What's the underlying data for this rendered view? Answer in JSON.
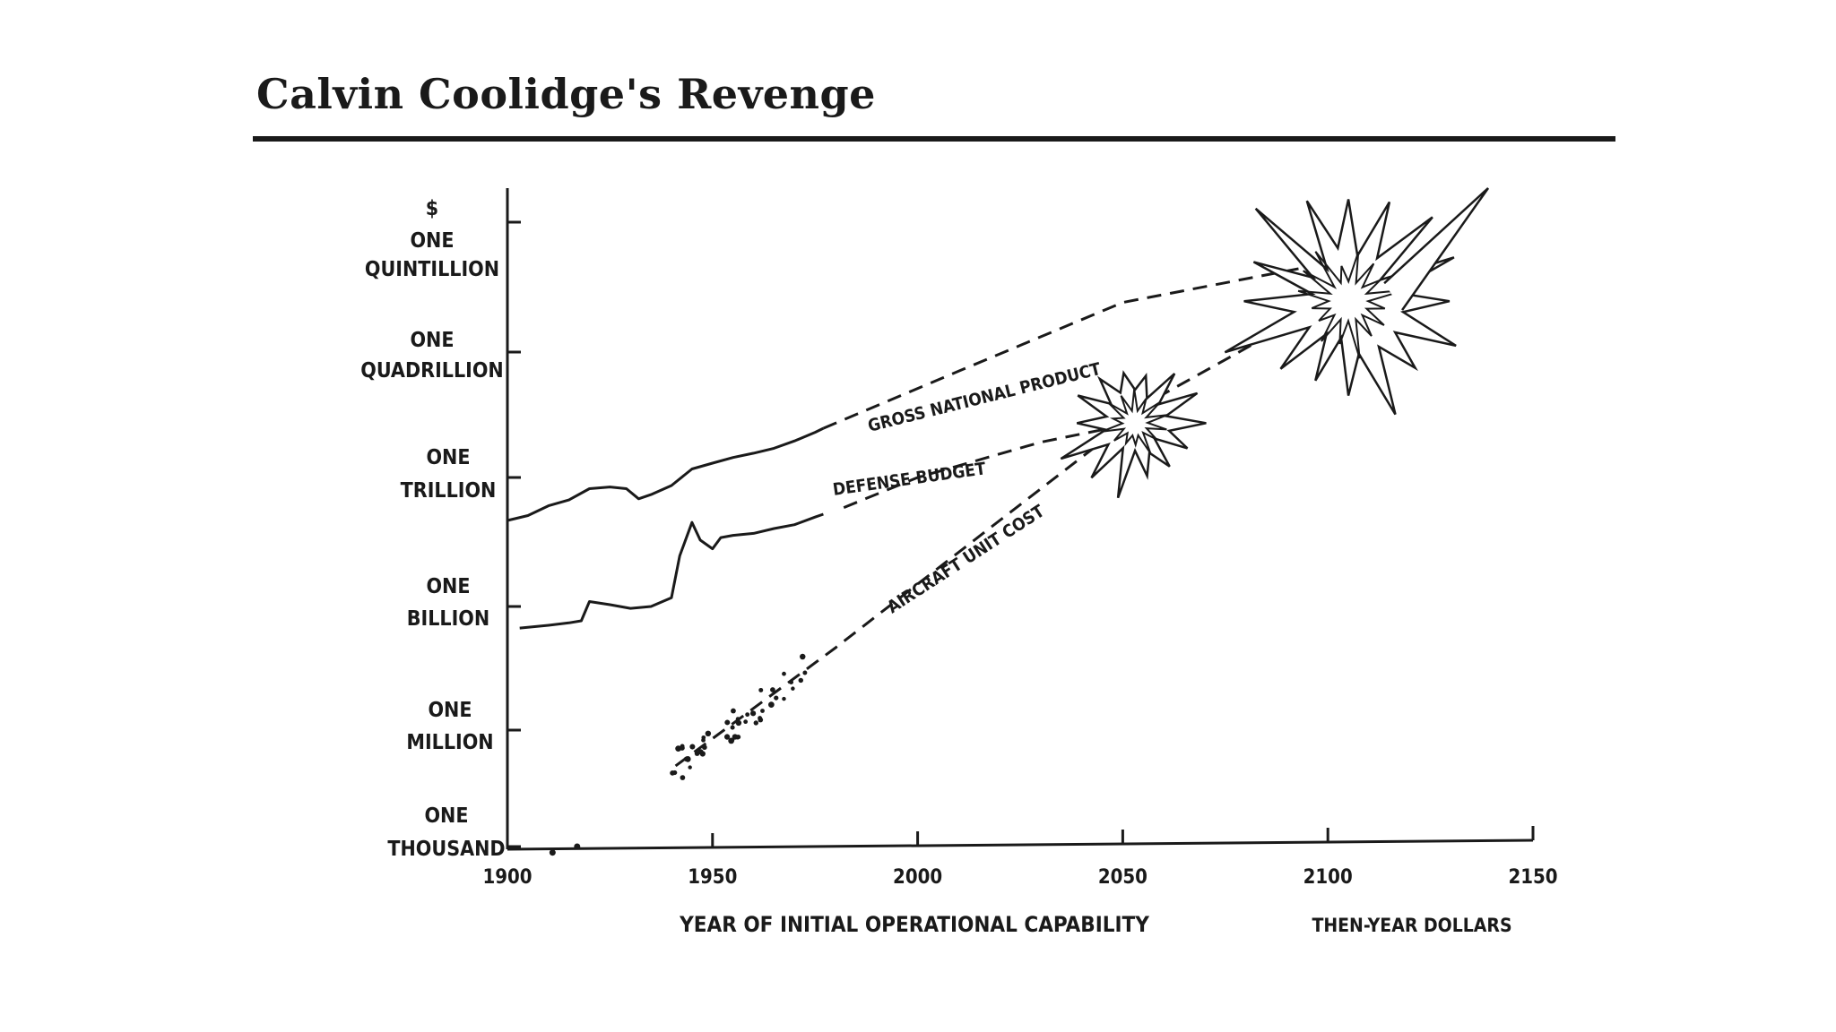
{
  "title": "Calvin Coolidge's Revenge",
  "chart_data": {
    "type": "line",
    "title": "Calvin Coolidge's Revenge",
    "xlabel": "YEAR OF INITIAL OPERATIONAL CAPABILITY",
    "ylabel": "$",
    "unit_note": "THEN-YEAR DOLLARS",
    "xlim": [
      1900,
      2150
    ],
    "x_ticks": [
      "1900",
      "1950",
      "2000",
      "2050",
      "2100",
      "2150"
    ],
    "y_scale": "log",
    "y_ticks": [
      {
        "value": 1000.0,
        "label": [
          "ONE",
          "THOUSAND"
        ]
      },
      {
        "value": 1000000.0,
        "label": [
          "ONE",
          "MILLION"
        ]
      },
      {
        "value": 1000000000.0,
        "label": [
          "ONE",
          "BILLION"
        ]
      },
      {
        "value": 1000000000000.0,
        "label": [
          "ONE",
          "TRILLION"
        ]
      },
      {
        "value": 1000000000000000.0,
        "label": [
          "ONE",
          "QUADRILLION"
        ]
      },
      {
        "value": 1e+18,
        "label": [
          "ONE",
          "QUINTILLION"
        ]
      }
    ],
    "series": [
      {
        "name": "GROSS NATIONAL PRODUCT",
        "actual": [
          [
            1900,
            100000000000.0
          ],
          [
            1905,
            130000000000.0
          ],
          [
            1910,
            220000000000.0
          ],
          [
            1915,
            300000000000.0
          ],
          [
            1920,
            550000000000.0
          ],
          [
            1925,
            600000000000.0
          ],
          [
            1929,
            550000000000.0
          ],
          [
            1932,
            320000000000.0
          ],
          [
            1935,
            400000000000.0
          ],
          [
            1940,
            650000000000.0
          ],
          [
            1945,
            1600000000000.0
          ],
          [
            1950,
            2200000000000.0
          ],
          [
            1955,
            3000000000000.0
          ],
          [
            1960,
            3800000000000.0
          ],
          [
            1965,
            5000000000000.0
          ],
          [
            1970,
            7500000000000.0
          ],
          [
            1975,
            12000000000000.0
          ],
          [
            1977,
            15000000000000.0
          ]
        ],
        "projected": [
          [
            1977,
            15000000000000.0
          ],
          [
            2010,
            350000000000000.0
          ],
          [
            2050,
            1.4e+16
          ],
          [
            2097,
            1e+17
          ]
        ]
      },
      {
        "name": "DEFENSE BUDGET",
        "actual": [
          [
            1903,
            300000000.0
          ],
          [
            1910,
            350000000.0
          ],
          [
            1915,
            400000000.0
          ],
          [
            1918,
            450000000.0
          ],
          [
            1920,
            1300000000.0
          ],
          [
            1925,
            1100000000.0
          ],
          [
            1930,
            900000000.0
          ],
          [
            1935,
            1000000000.0
          ],
          [
            1940,
            1600000000.0
          ],
          [
            1942,
            15000000000.0
          ],
          [
            1945,
            90000000000.0
          ],
          [
            1947,
            35000000000.0
          ],
          [
            1950,
            22000000000.0
          ],
          [
            1952,
            40000000000.0
          ],
          [
            1955,
            45000000000.0
          ],
          [
            1960,
            50000000000.0
          ],
          [
            1965,
            65000000000.0
          ],
          [
            1970,
            80000000000.0
          ],
          [
            1975,
            120000000000.0
          ],
          [
            1977,
            140000000000.0
          ]
        ],
        "projected": [
          [
            1982,
            200000000000.0
          ],
          [
            2000,
            1000000000000.0
          ],
          [
            2030,
            7000000000000.0
          ],
          [
            2053,
            20000000000000.0
          ]
        ]
      },
      {
        "name": "AIRCRAFT UNIT COST",
        "early_points": [
          [
            1911,
            700.0
          ],
          [
            1917,
            1000.0
          ]
        ],
        "projected": [
          [
            1941,
            120000.0
          ],
          [
            1980,
            100000000.0
          ],
          [
            2020,
            100000000000.0
          ],
          [
            2060,
            100000000000000.0
          ],
          [
            2103,
            2e+16
          ]
        ]
      }
    ],
    "annotations": [
      "explosion at ~2053 where AIRCRAFT UNIT COST meets DEFENSE BUDGET",
      "explosion at ~2105 where AIRCRAFT UNIT COST meets GROSS NATIONAL PRODUCT"
    ],
    "grid": false
  }
}
